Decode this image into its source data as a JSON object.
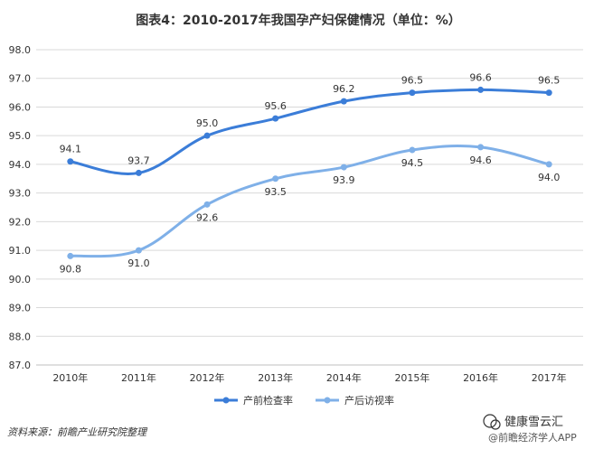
{
  "title": "图表4：2010-2017年我国孕产妇保健情况（单位：%）",
  "source": "资料来源：前瞻产业研究院整理",
  "watermark": {
    "name": "健康雪云汇",
    "sub": "@前瞻经济学人APP"
  },
  "colors": {
    "series1": "#3b7dd8",
    "series2": "#7fb0e8",
    "grid": "#d9d9d9",
    "axis": "#bfbfbf"
  },
  "chart_data": {
    "type": "line",
    "title": "图表4：2010-2017年我国孕产妇保健情况（单位：%）",
    "categories": [
      "2010年",
      "2011年",
      "2012年",
      "2013年",
      "2014年",
      "2015年",
      "2016年",
      "2017年"
    ],
    "series": [
      {
        "name": "产前检查率",
        "values": [
          94.1,
          93.7,
          95.0,
          95.6,
          96.2,
          96.5,
          96.6,
          96.5
        ],
        "labels": [
          "94.1",
          "93.7",
          "95.0",
          "95.6",
          "96.2",
          "96.5",
          "96.6",
          "96.5"
        ]
      },
      {
        "name": "产后访视率",
        "values": [
          90.8,
          91.0,
          92.6,
          93.5,
          93.9,
          94.5,
          94.6,
          94.0
        ],
        "labels": [
          "90.8",
          "91.0",
          "92.6",
          "93.5",
          "93.9",
          "94.5",
          "94.6",
          "94.0"
        ]
      }
    ],
    "yticks": [
      "87.0",
      "88.0",
      "89.0",
      "90.0",
      "91.0",
      "92.0",
      "93.0",
      "94.0",
      "95.0",
      "96.0",
      "97.0",
      "98.0"
    ],
    "ylim": [
      87.0,
      98.0
    ],
    "grid": true,
    "legend": "bottom",
    "smooth": true
  }
}
